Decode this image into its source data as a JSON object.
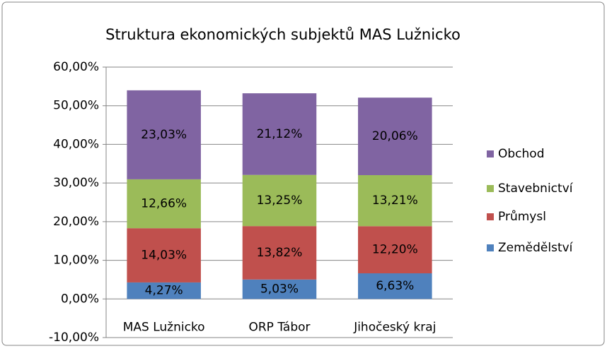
{
  "chart_data": {
    "type": "stacked_bar",
    "title": "Struktura ekonomických subjektů MAS Lužnicko",
    "categories": [
      "MAS Lužnicko",
      "ORP Tábor",
      "Jihočeský kraj"
    ],
    "series": [
      {
        "name": "Zemědělství",
        "color": "#4f81bd",
        "values": [
          4.27,
          5.03,
          6.63
        ],
        "value_labels": [
          "4,27%",
          "5,03%",
          "6,63%"
        ]
      },
      {
        "name": "Průmysl",
        "color": "#c0504d",
        "values": [
          14.03,
          13.82,
          12.2
        ],
        "value_labels": [
          "14,03%",
          "13,82%",
          "12,20%"
        ]
      },
      {
        "name": "Stavebnictví",
        "color": "#9bbb59",
        "values": [
          12.66,
          13.25,
          13.21
        ],
        "value_labels": [
          "12,66%",
          "13,25%",
          "13,21%"
        ]
      },
      {
        "name": "Obchod",
        "color": "#8064a2",
        "values": [
          23.03,
          21.12,
          20.06
        ],
        "value_labels": [
          "23,03%",
          "21,12%",
          "20,06%"
        ]
      }
    ],
    "ylim": [
      -10,
      60
    ],
    "yticks": [
      {
        "value": -10,
        "label": "-10,00%"
      },
      {
        "value": 0,
        "label": "0,00%"
      },
      {
        "value": 10,
        "label": "10,00%"
      },
      {
        "value": 20,
        "label": "20,00%"
      },
      {
        "value": 30,
        "label": "30,00%"
      },
      {
        "value": 40,
        "label": "40,00%"
      },
      {
        "value": 50,
        "label": "50,00%"
      },
      {
        "value": 60,
        "label": "60,00%"
      }
    ],
    "grid": true
  }
}
